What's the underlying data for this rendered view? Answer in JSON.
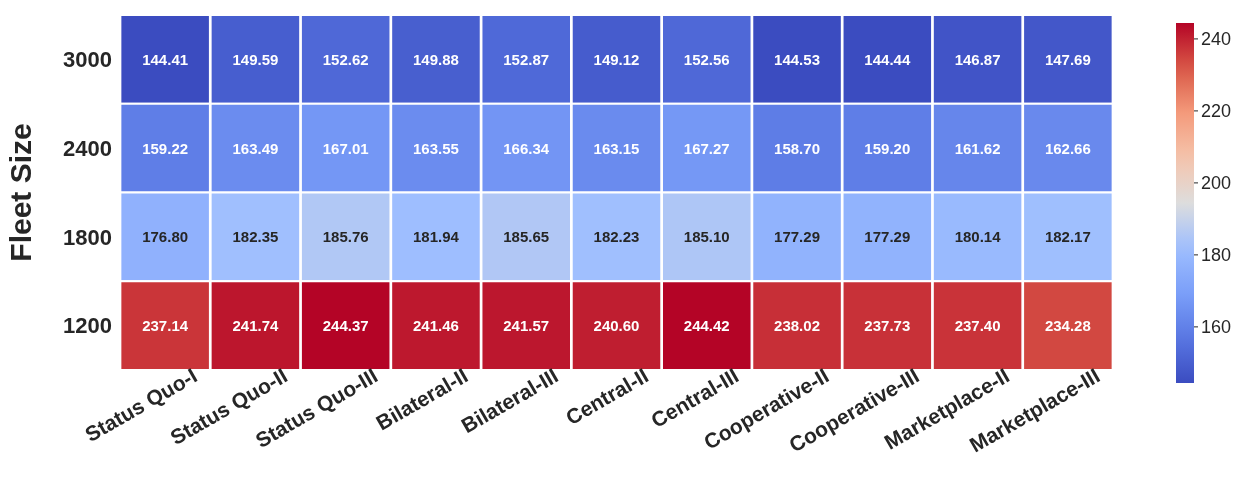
{
  "chart_data": {
    "type": "heatmap",
    "ylabel": "Fleet Size",
    "categories": [
      "Status Quo-I",
      "Status Quo-II",
      "Status Quo-III",
      "Bilateral-II",
      "Bilateral-III",
      "Central-II",
      "Central-III",
      "Cooperative-II",
      "Cooperative-III",
      "Marketplace-II",
      "Marketplace-III"
    ],
    "y_categories": [
      "3000",
      "2400",
      "1800",
      "1200"
    ],
    "cells": [
      [
        144.41,
        149.59,
        152.62,
        149.88,
        152.87,
        149.12,
        152.56,
        144.53,
        144.44,
        146.87,
        147.69
      ],
      [
        159.22,
        163.49,
        167.01,
        163.55,
        166.34,
        163.15,
        167.27,
        158.7,
        159.2,
        161.62,
        162.66
      ],
      [
        176.8,
        182.35,
        185.76,
        181.94,
        185.65,
        182.23,
        185.1,
        177.29,
        177.29,
        180.14,
        182.17
      ],
      [
        237.14,
        241.74,
        244.37,
        241.46,
        241.57,
        240.6,
        244.42,
        238.02,
        237.73,
        237.4,
        234.28
      ]
    ],
    "cell_labels": [
      [
        "144.41",
        "149.59",
        "152.62",
        "149.88",
        "152.87",
        "149.12",
        "152.56",
        "144.53",
        "144.44",
        "146.87",
        "147.69"
      ],
      [
        "159.22",
        "163.49",
        "167.01",
        "163.55",
        "166.34",
        "163.15",
        "167.27",
        "158.70",
        "159.20",
        "161.62",
        "162.66"
      ],
      [
        "176.80",
        "182.35",
        "185.76",
        "181.94",
        "185.65",
        "182.23",
        "185.10",
        "177.29",
        "177.29",
        "180.14",
        "182.17"
      ],
      [
        "237.14",
        "241.74",
        "244.37",
        "241.46",
        "241.57",
        "240.60",
        "244.42",
        "238.02",
        "237.73",
        "237.40",
        "234.28"
      ]
    ],
    "clim": [
      144.41,
      244.42
    ],
    "cticks": [
      160,
      180,
      200,
      220,
      240
    ]
  }
}
